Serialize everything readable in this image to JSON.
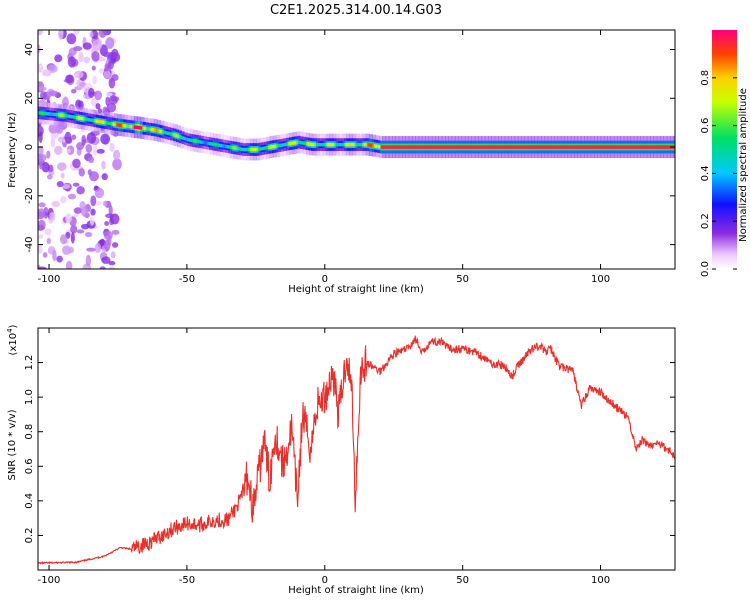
{
  "title": "C2E1.2025.314.00.14.G03",
  "chart_data": [
    {
      "type": "heatmap",
      "xlabel": "Height of straight line (km)",
      "ylabel": "Frequency (Hz)",
      "xlim": [
        -104,
        127
      ],
      "ylim": [
        -50,
        48
      ],
      "x_ticks": [
        -100,
        -50,
        0,
        50,
        100
      ],
      "y_ticks": [
        -40,
        -20,
        0,
        20,
        40
      ],
      "ridge": {
        "x": [
          -104,
          -95,
          -85,
          -75,
          -68,
          -62,
          -55,
          -50,
          -45,
          -40,
          -35,
          -30,
          -25,
          -20,
          -15,
          -10,
          -5,
          0,
          5,
          10,
          15,
          20,
          40,
          60,
          80,
          100,
          127
        ],
        "freq": [
          14,
          13,
          11,
          9,
          8,
          7,
          5,
          3,
          2,
          1,
          0,
          -1,
          -1,
          0,
          1,
          2,
          1,
          1,
          1,
          1,
          1,
          0,
          0,
          0,
          0,
          0,
          0
        ],
        "peak_amplitude": [
          0.45,
          0.55,
          0.6,
          0.75,
          0.9,
          0.7,
          0.55,
          0.5,
          0.45,
          0.45,
          0.5,
          0.55,
          0.6,
          0.6,
          0.55,
          0.65,
          0.6,
          0.6,
          0.6,
          0.65,
          0.7,
          0.95,
          0.95,
          0.95,
          0.95,
          0.95,
          0.95
        ]
      },
      "noise_region_x": [
        -104,
        -75
      ]
    },
    {
      "type": "colorbar",
      "label": "Normalized spectral amplitude",
      "range": [
        0,
        1
      ],
      "ticks": [
        "0.0",
        "0.2",
        "0.4",
        "0.6",
        "0.8"
      ],
      "tick_values": [
        0,
        0.2,
        0.4,
        0.6,
        0.8
      ]
    },
    {
      "type": "line",
      "xlabel": "Height of straight line (km)",
      "ylabel": "SNR (10 * v/v)",
      "scale_label": "(x10",
      "scale_exponent": "4",
      "scale_close": ")",
      "xlim": [
        -104,
        127
      ],
      "ylim": [
        0,
        14000
      ],
      "x_ticks": [
        -100,
        -50,
        0,
        50,
        100
      ],
      "y_ticks": [
        2000,
        4000,
        6000,
        8000,
        10000,
        12000
      ],
      "y_tick_labels": [
        "0.2",
        "0.4",
        "0.6",
        "0.8",
        "1.0",
        "1.2"
      ],
      "color": "#e8302b",
      "series": [
        {
          "name": "SNR",
          "x": [
            -104,
            -90,
            -80,
            -74,
            -70,
            -65,
            -60,
            -55,
            -50,
            -45,
            -40,
            -35,
            -30,
            -28,
            -26,
            -22,
            -20,
            -18,
            -15,
            -12,
            -10,
            -8,
            -5,
            -3,
            0,
            3,
            5,
            8,
            10,
            11,
            13,
            15,
            20,
            25,
            30,
            33,
            35,
            38,
            42,
            45,
            50,
            55,
            60,
            65,
            68,
            70,
            75,
            78,
            80,
            82,
            85,
            90,
            93,
            96,
            100,
            105,
            110,
            113,
            115,
            118,
            122,
            127
          ],
          "y": [
            400,
            450,
            800,
            1300,
            1200,
            1500,
            1900,
            2400,
            2700,
            2600,
            2900,
            2900,
            4200,
            5500,
            3500,
            7500,
            5200,
            8000,
            6000,
            8200,
            4000,
            9000,
            7000,
            9500,
            10000,
            11500,
            9000,
            12500,
            10000,
            4000,
            11500,
            12000,
            11500,
            12500,
            12800,
            13400,
            12500,
            13200,
            13200,
            12800,
            12800,
            12600,
            12000,
            11800,
            11200,
            11800,
            12800,
            13000,
            12600,
            12800,
            11800,
            11500,
            9500,
            10500,
            10300,
            9500,
            8800,
            7000,
            7500,
            7200,
            7300,
            6600
          ]
        }
      ]
    }
  ]
}
